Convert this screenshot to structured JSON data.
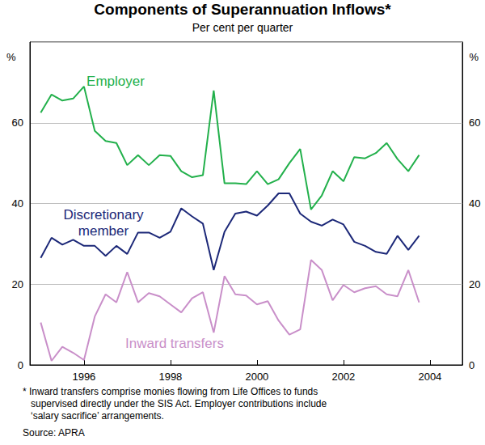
{
  "chart_data": {
    "type": "line",
    "title": "Components of Superannuation Inflows*",
    "subtitle": "Per cent per quarter",
    "ylabel": "%",
    "y2label": "%",
    "x": [
      1995,
      1995.25,
      1995.5,
      1995.75,
      1996,
      1996.25,
      1996.5,
      1996.75,
      1997,
      1997.25,
      1997.5,
      1997.75,
      1998,
      1998.25,
      1998.5,
      1998.75,
      1999,
      1999.25,
      1999.5,
      1999.75,
      2000,
      2000.25,
      2000.5,
      2000.75,
      2001,
      2001.25,
      2001.5,
      2001.75,
      2002,
      2002.25,
      2002.5,
      2002.75,
      2003,
      2003.25,
      2003.5,
      2003.75
    ],
    "series": [
      {
        "name": "Employer",
        "color": "#22b04b",
        "values": [
          62.5,
          67,
          65.5,
          66,
          69,
          58,
          55.5,
          55,
          49.5,
          52,
          49.5,
          52,
          51.8,
          48,
          46.5,
          47,
          68,
          45,
          45,
          44.8,
          48,
          44.8,
          46,
          50,
          53.5,
          38.5,
          42,
          48,
          45.5,
          51.5,
          51.2,
          52.5,
          55,
          51,
          48,
          52
        ]
      },
      {
        "name": "Discretionary member",
        "color": "#1c2878",
        "values": [
          26.5,
          31.5,
          29.8,
          31,
          29.5,
          29.5,
          27,
          29.5,
          27.5,
          32.8,
          32.8,
          31.5,
          33,
          38.8,
          36.8,
          35,
          23.5,
          33,
          37.5,
          38,
          37,
          39.5,
          42.5,
          42.5,
          37.5,
          35.5,
          34.5,
          36,
          34.8,
          30.5,
          29.5,
          28,
          27.5,
          32,
          28.5,
          32
        ]
      },
      {
        "name": "Inward transfers",
        "color": "#c98fc9",
        "values": [
          10.5,
          1,
          4.5,
          3,
          1.2,
          12,
          17.5,
          15.5,
          23,
          15.5,
          17.8,
          17,
          15,
          13,
          16.5,
          18,
          8,
          22,
          17.5,
          17.2,
          15,
          15.8,
          11,
          7.5,
          8.8,
          26,
          23.5,
          16,
          19.8,
          18,
          19,
          19.5,
          17.5,
          17,
          23.5,
          15.5
        ]
      }
    ],
    "xlim": [
      1994.75,
      2004.75
    ],
    "xticks": [
      1996,
      1998,
      2000,
      2002,
      2004
    ],
    "ylim": [
      0,
      80
    ],
    "yticks": [
      0,
      20,
      40,
      60
    ],
    "y2lim": [
      0,
      80
    ],
    "y2ticks": [
      0,
      20,
      40,
      60
    ],
    "grid": true,
    "notes": [
      "* Inward transfers comprise monies flowing from Life Offices to funds",
      "supervised directly under the SIS Act. Employer contributions include",
      "‘salary sacrifice’ arrangements."
    ],
    "source": "Source: APRA"
  }
}
